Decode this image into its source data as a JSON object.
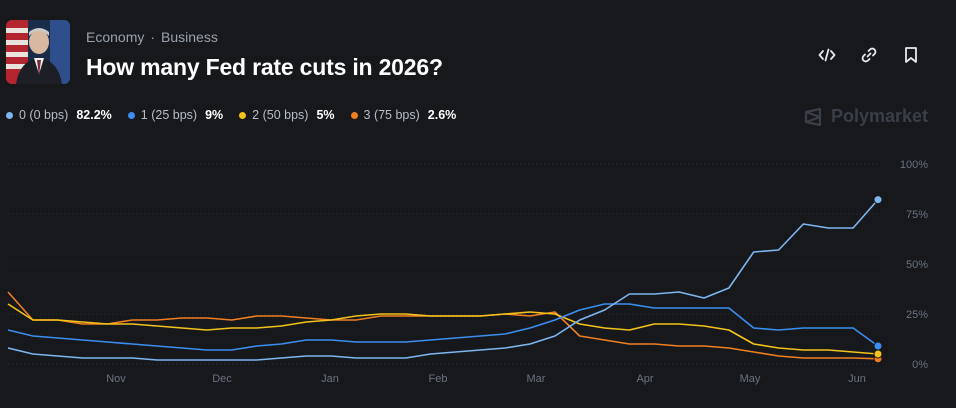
{
  "header": {
    "breadcrumb": [
      "Economy",
      "Business"
    ],
    "title": "How many Fed rate cuts in 2026?",
    "actions": [
      "embed-icon",
      "link-icon",
      "bookmark-icon"
    ]
  },
  "legend": [
    {
      "name": "0 (0 bps)",
      "value": "82.2%",
      "color": "#7fb6f2"
    },
    {
      "name": "1 (25 bps)",
      "value": "9%",
      "color": "#3b8ff0"
    },
    {
      "name": "2 (50 bps)",
      "value": "5%",
      "color": "#f5c21b"
    },
    {
      "name": "3 (75 bps)",
      "value": "2.6%",
      "color": "#f07f22"
    }
  ],
  "brand": "Polymarket",
  "chart_data": {
    "type": "line",
    "x_ticks": [
      "Nov",
      "Dec",
      "Jan",
      "Feb",
      "Mar",
      "Apr",
      "May",
      "Jun"
    ],
    "y_ticks": [
      "100%",
      "75%",
      "50%",
      "25%",
      "0%"
    ],
    "ylim": [
      0,
      100
    ],
    "x": [
      "Oct 7",
      "Oct 14",
      "Oct 21",
      "Oct 28",
      "Nov 4",
      "Nov 11",
      "Nov 18",
      "Nov 25",
      "Dec 2",
      "Dec 9",
      "Dec 16",
      "Dec 23",
      "Dec 30",
      "Jan 6",
      "Jan 13",
      "Jan 20",
      "Jan 27",
      "Feb 3",
      "Feb 10",
      "Feb 17",
      "Feb 24",
      "Mar 3",
      "Mar 10",
      "Mar 17",
      "Mar 24",
      "Mar 31",
      "Apr 7",
      "Apr 14",
      "Apr 21",
      "Apr 28",
      "May 5",
      "May 12",
      "May 19",
      "May 26",
      "Jun 2",
      "Jun 6"
    ],
    "series": [
      {
        "name": "0 (0 bps)",
        "color": "#7fb6f2",
        "values": [
          8,
          5,
          4,
          3,
          3,
          3,
          2,
          2,
          2,
          2,
          2,
          3,
          4,
          4,
          3,
          3,
          3,
          5,
          6,
          7,
          8,
          10,
          14,
          22,
          27,
          35,
          35,
          36,
          33,
          38,
          56,
          57,
          70,
          68,
          68,
          82.2
        ]
      },
      {
        "name": "1 (25 bps)",
        "color": "#3b8ff0",
        "values": [
          17,
          14,
          13,
          12,
          11,
          10,
          9,
          8,
          7,
          7,
          9,
          10,
          12,
          12,
          11,
          11,
          11,
          12,
          13,
          14,
          15,
          18,
          22,
          27,
          30,
          30,
          28,
          28,
          28,
          28,
          18,
          17,
          18,
          18,
          18,
          9
        ]
      },
      {
        "name": "2 (50 bps)",
        "color": "#f5c21b",
        "values": [
          30,
          22,
          22,
          21,
          20,
          20,
          19,
          18,
          17,
          18,
          18,
          19,
          21,
          22,
          24,
          25,
          25,
          24,
          24,
          24,
          25,
          26,
          25,
          20,
          18,
          17,
          20,
          20,
          19,
          17,
          10,
          8,
          7,
          7,
          6,
          5
        ]
      },
      {
        "name": "3 (75 bps)",
        "color": "#f07f22",
        "values": [
          36,
          22,
          22,
          20,
          20,
          22,
          22,
          23,
          23,
          22,
          24,
          24,
          23,
          22,
          22,
          24,
          24,
          24,
          24,
          24,
          25,
          24,
          26,
          14,
          12,
          10,
          10,
          9,
          9,
          8,
          6,
          4,
          3,
          3,
          3,
          2.6
        ]
      }
    ]
  }
}
